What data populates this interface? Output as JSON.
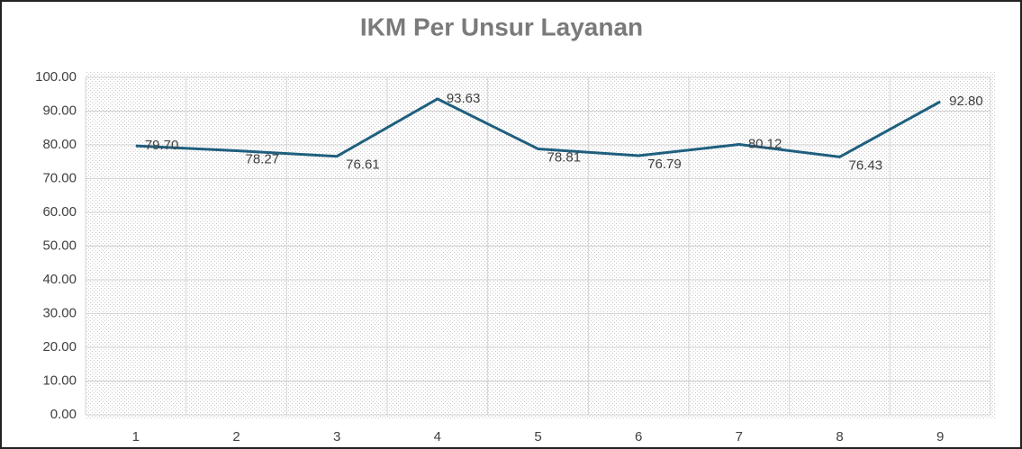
{
  "chart_data": {
    "type": "line",
    "title": "IKM Per Unsur Layanan",
    "categories": [
      "1",
      "2",
      "3",
      "4",
      "5",
      "6",
      "7",
      "8",
      "9"
    ],
    "values": [
      79.7,
      78.27,
      76.61,
      93.63,
      78.81,
      76.79,
      80.12,
      76.43,
      92.8
    ],
    "value_labels": [
      "79.70",
      "78.27",
      "76.61",
      "93.63",
      "78.81",
      "76.79",
      "80.12",
      "76.43",
      "92.80"
    ],
    "color": "#1f5f7e",
    "ylim": [
      0,
      100
    ],
    "yticks": [
      {
        "value": 0,
        "label": "0.00"
      },
      {
        "value": 10,
        "label": "10.00"
      },
      {
        "value": 20,
        "label": "20.00"
      },
      {
        "value": 30,
        "label": "30.00"
      },
      {
        "value": 40,
        "label": "40.00"
      },
      {
        "value": 50,
        "label": "50.00"
      },
      {
        "value": 60,
        "label": "60.00"
      },
      {
        "value": 70,
        "label": "70.00"
      },
      {
        "value": 80,
        "label": "80.00"
      },
      {
        "value": 90,
        "label": "90.00"
      },
      {
        "value": 100,
        "label": "100.00"
      }
    ],
    "grid": true
  }
}
